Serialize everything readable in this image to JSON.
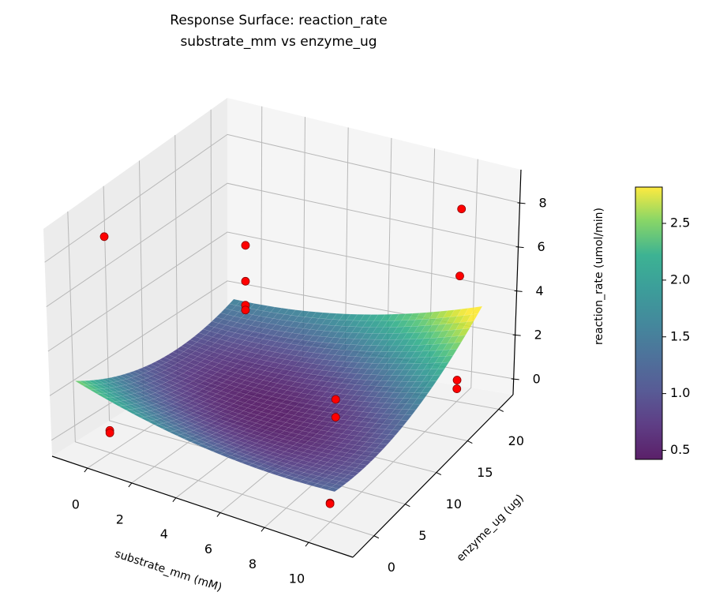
{
  "chart_data": {
    "type": "surface",
    "title": [
      "Response Surface: reaction_rate",
      "substrate_mm vs enzyme_ug"
    ],
    "xlabel": "substrate_mm (mM)",
    "ylabel": "enzyme_ug (ug)",
    "zlabel": "reaction_rate (umol/min)",
    "xlim": [
      -1.6,
      12.0
    ],
    "ylim": [
      -3.4,
      22.3
    ],
    "zlim": [
      -0.72,
      9.5
    ],
    "xticks": [
      "0",
      "2",
      "4",
      "6",
      "8",
      "10"
    ],
    "yticks": [
      "0",
      "5",
      "10",
      "15",
      "20"
    ],
    "zticks": [
      "0",
      "2",
      "4",
      "6",
      "8"
    ],
    "grid": true,
    "colorbar": {
      "colormap": "viridis",
      "range": [
        0.42,
        2.82
      ],
      "ticks": [
        "0.5",
        "1.0",
        "1.5",
        "2.0",
        "2.5"
      ]
    },
    "surface": {
      "model": "z = 0.45 + 0.0157*(x-4.5)^2 + 0.00725*(y-9)^2 + 0.011*(x-4.5)*(y-9)",
      "x_range": [
        -1.2,
        10.5
      ],
      "y_range": [
        -1,
        22
      ],
      "alpha": 0.85
    },
    "points": [
      {
        "x": 0,
        "y": 0,
        "z": 0.28
      },
      {
        "x": 0,
        "y": 0,
        "z": 0.17
      },
      {
        "x": 0,
        "y": 0,
        "z": 8.9
      },
      {
        "x": 0,
        "y": 20,
        "z": 4.2
      },
      {
        "x": 0,
        "y": 20,
        "z": 2.7
      },
      {
        "x": 0,
        "y": 20,
        "z": 1.7
      },
      {
        "x": 0,
        "y": 20,
        "z": 1.5
      },
      {
        "x": 8.8,
        "y": 5,
        "z": 3.1
      },
      {
        "x": 8.8,
        "y": 5,
        "z": 2.3
      },
      {
        "x": 10,
        "y": 0,
        "z": 0.14
      },
      {
        "x": 10,
        "y": 0,
        "z": 0.1
      },
      {
        "x": 10,
        "y": 20,
        "z": 0.24
      },
      {
        "x": 10,
        "y": 20,
        "z": -0.15
      },
      {
        "x": 10,
        "y": 20,
        "z": 4.9
      },
      {
        "x": 10,
        "y": 20,
        "z": 7.9
      }
    ],
    "colors": {
      "points": "#ff0000",
      "point_edge": "#8b0000",
      "pane": "#f2f2f2",
      "grid": "#b8b8b8"
    }
  }
}
